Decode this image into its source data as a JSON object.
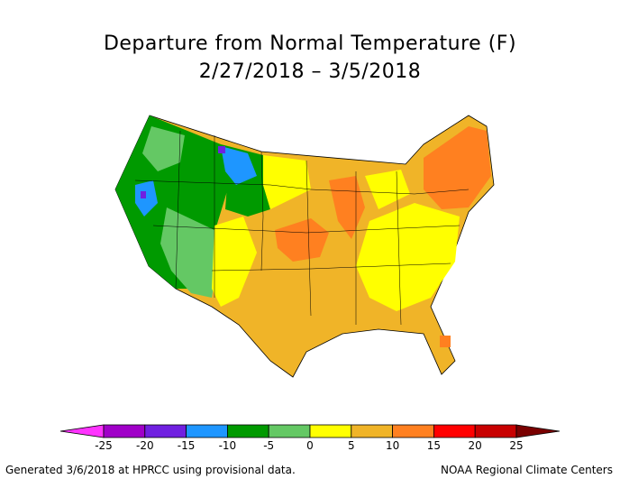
{
  "title_line1": "Departure from Normal Temperature (F)",
  "title_line2": "2/27/2018 – 3/5/2018",
  "legend": {
    "ticks": [
      "-25",
      "-20",
      "-15",
      "-10",
      "-5",
      "0",
      "5",
      "10",
      "15",
      "20",
      "25"
    ],
    "colors": [
      "#ff33ff",
      "#a000c8",
      "#7020e0",
      "#1e96ff",
      "#009a00",
      "#64c864",
      "#ffff00",
      "#f0b428",
      "#ff8020",
      "#ff0000",
      "#c80000",
      "#7a0000"
    ]
  },
  "footer_left": "Generated 3/6/2018 at HPRCC using provisional data.",
  "footer_right": "NOAA Regional Climate Centers"
}
